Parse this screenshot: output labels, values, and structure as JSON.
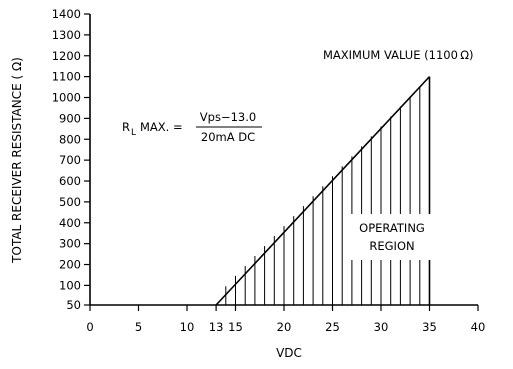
{
  "chart_data": {
    "type": "area",
    "title": "",
    "xlabel": "VDC",
    "ylabel": "TOTAL RECEIVER RESISTANCE ( Ω)",
    "xlim": [
      0,
      40
    ],
    "ylim": [
      50,
      1400
    ],
    "x_ticks": [
      {
        "value": 0,
        "label": "0"
      },
      {
        "value": 5,
        "label": "5"
      },
      {
        "value": 10,
        "label": "10"
      },
      {
        "value": 13,
        "label": "13"
      },
      {
        "value": 15,
        "label": "15"
      },
      {
        "value": 20,
        "label": "20"
      },
      {
        "value": 25,
        "label": "25"
      },
      {
        "value": 30,
        "label": "30"
      },
      {
        "value": 35,
        "label": "35"
      },
      {
        "value": 40,
        "label": "40"
      }
    ],
    "y_ticks": [
      {
        "value": 50,
        "label": "50"
      },
      {
        "value": 100,
        "label": "100"
      },
      {
        "value": 200,
        "label": "200"
      },
      {
        "value": 300,
        "label": "300"
      },
      {
        "value": 400,
        "label": "400"
      },
      {
        "value": 500,
        "label": "500"
      },
      {
        "value": 600,
        "label": "600"
      },
      {
        "value": 700,
        "label": "700"
      },
      {
        "value": 800,
        "label": "800"
      },
      {
        "value": 900,
        "label": "900"
      },
      {
        "value": 1000,
        "label": "1000"
      },
      {
        "value": 1100,
        "label": "1100"
      },
      {
        "value": 1200,
        "label": "1200"
      },
      {
        "value": 1300,
        "label": "1300"
      },
      {
        "value": 1400,
        "label": "1400"
      }
    ],
    "series": [
      {
        "x": [
          13,
          35
        ],
        "y": [
          50,
          1100
        ]
      }
    ],
    "region_bounds": {
      "x_start": 13,
      "x_end": 35,
      "y_base": 50,
      "y_top": 1100
    },
    "hatch_step": 1,
    "grid": false,
    "annotations": {
      "max_value": "MAXIMUM VALUE (1100 Ω)",
      "region_line1": "OPERATING",
      "region_line2": "REGION",
      "formula_lhs_r": "R",
      "formula_lhs_sub": "L",
      "formula_lhs_rest": "MAX. =",
      "formula_numerator": "Vps−13.0",
      "formula_denominator": "20mA DC"
    }
  }
}
